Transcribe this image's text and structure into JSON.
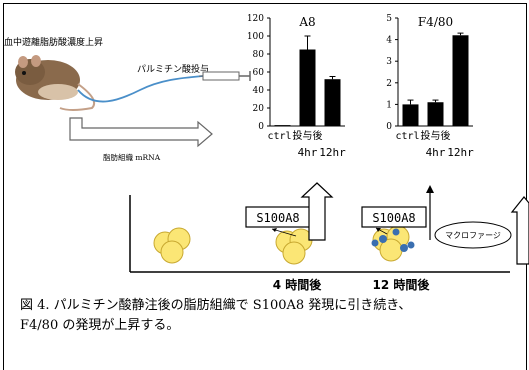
{
  "labels": {
    "top_left": "血中遊離脂肪酸濃度上昇",
    "injection": "パルミチン酸投与",
    "tissue": "脂肪組織 mRNA",
    "s100a8_box_1": "S100A8",
    "s100a8_box_2": "S100A8",
    "macrophage": "マクロファージ",
    "time_4": "4 時間後",
    "time_12": "12 時間後"
  },
  "caption": {
    "line1": "図 4. パルミチン酸静注後の脂肪組織で S100A8 発現に引き続き、",
    "line2": "F4/80 の発現が上昇する。"
  },
  "chart_data": [
    {
      "type": "bar",
      "title": "A8",
      "categories": [
        "ctrl.",
        "投与後 4hr",
        "12hr"
      ],
      "tick_row1": [
        "ctrl.",
        "投与後",
        ""
      ],
      "tick_row2": [
        "",
        "4hr",
        "12hr"
      ],
      "values": [
        1,
        85,
        52
      ],
      "errors": [
        0,
        15,
        3
      ],
      "ylim": [
        0,
        120
      ],
      "yticks": [
        "0",
        "20",
        "40",
        "60",
        "80",
        "100",
        "120"
      ],
      "xlabel": "",
      "ylabel": ""
    },
    {
      "type": "bar",
      "title": "F4/80",
      "categories": [
        "ctrl.",
        "投与後 4hr",
        "12hr"
      ],
      "tick_row1": [
        "ctrl.",
        "投与後",
        ""
      ],
      "tick_row2": [
        "",
        "4hr",
        "12hr"
      ],
      "values": [
        1.0,
        1.1,
        4.2
      ],
      "errors": [
        0.2,
        0.1,
        0.1
      ],
      "ylim": [
        0,
        5
      ],
      "yticks": [
        "0",
        "1",
        "2",
        "3",
        "4",
        "5"
      ],
      "xlabel": "",
      "ylabel": ""
    }
  ]
}
